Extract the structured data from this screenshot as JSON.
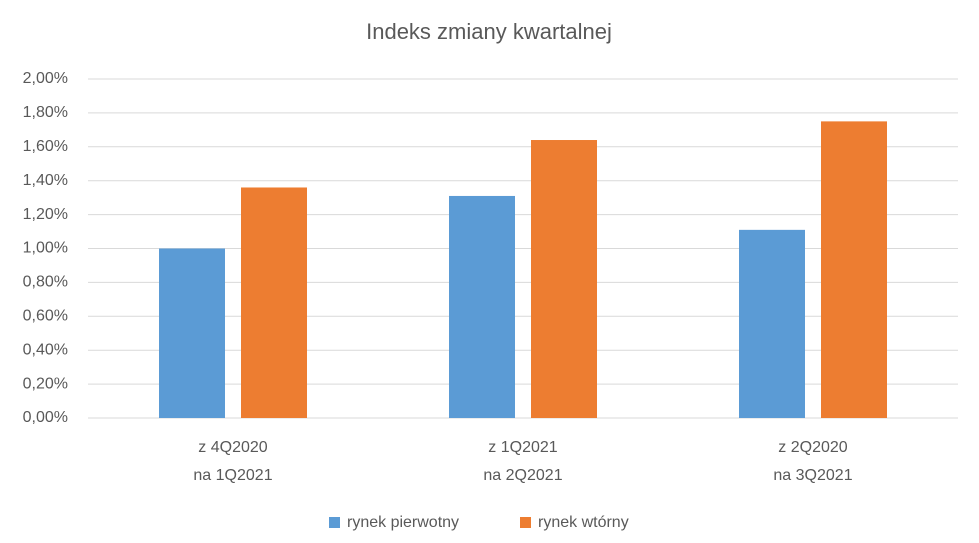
{
  "chart_data": {
    "type": "bar",
    "title": "Indeks zmiany kwartalnej",
    "categories": [
      [
        "z 4Q2020",
        "na 1Q2021"
      ],
      [
        "z 1Q2021",
        "na 2Q2021"
      ],
      [
        "z 2Q2020",
        "na 3Q2021"
      ]
    ],
    "series": [
      {
        "name": "rynek pierwotny",
        "color": "#5b9bd5",
        "values": [
          1.0,
          1.31,
          1.11
        ]
      },
      {
        "name": "rynek wtórny",
        "color": "#ed7d31",
        "values": [
          1.36,
          1.64,
          1.75
        ]
      }
    ],
    "ylim": [
      0,
      2
    ],
    "yticks": [
      {
        "value": 0,
        "label": "0,00%"
      },
      {
        "value": 0.2,
        "label": "0,20%"
      },
      {
        "value": 0.4,
        "label": "0,40%"
      },
      {
        "value": 0.6,
        "label": "0,60%"
      },
      {
        "value": 0.8,
        "label": "0,80%"
      },
      {
        "value": 1.0,
        "label": "1,00%"
      },
      {
        "value": 1.2,
        "label": "1,20%"
      },
      {
        "value": 1.4,
        "label": "1,40%"
      },
      {
        "value": 1.6,
        "label": "1,60%"
      },
      {
        "value": 1.8,
        "label": "1,80%"
      },
      {
        "value": 2.0,
        "label": "2,00%"
      }
    ],
    "grid": true,
    "legend": "bottom"
  }
}
